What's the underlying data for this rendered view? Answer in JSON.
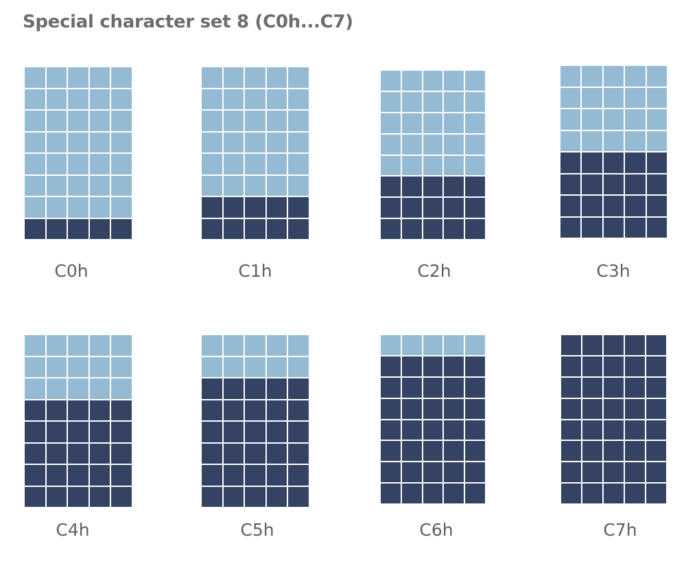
{
  "title": "Special character set 8 (C0h...C7)",
  "colors": {
    "on": "#344263",
    "off": "#95bad3",
    "grid_lines": "#ffffff",
    "text": "#6d6d6d"
  },
  "grid": {
    "columns": 5,
    "rows": 8
  },
  "characters": [
    {
      "label": "C0h",
      "filled_rows": 1
    },
    {
      "label": "C1h",
      "filled_rows": 2
    },
    {
      "label": "C2h",
      "filled_rows": 3
    },
    {
      "label": "C3h",
      "filled_rows": 4
    },
    {
      "label": "C4h",
      "filled_rows": 5
    },
    {
      "label": "C5h",
      "filled_rows": 6
    },
    {
      "label": "C6h",
      "filled_rows": 7
    },
    {
      "label": "C7h",
      "filled_rows": 8
    }
  ]
}
